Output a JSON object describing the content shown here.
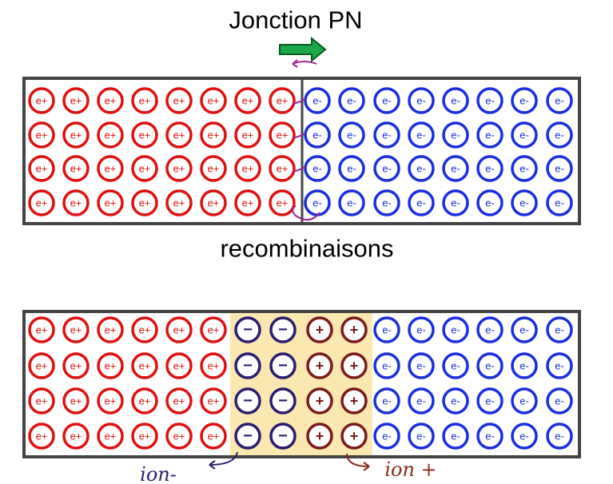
{
  "title": "Jonction PN",
  "caption": "recombinaisons",
  "hole_label": "e+",
  "electron_label": "e-",
  "negative_ion_label": "−",
  "positive_ion_label": "+",
  "ion_minus": "ion-",
  "ion_plus": "ion +"
}
